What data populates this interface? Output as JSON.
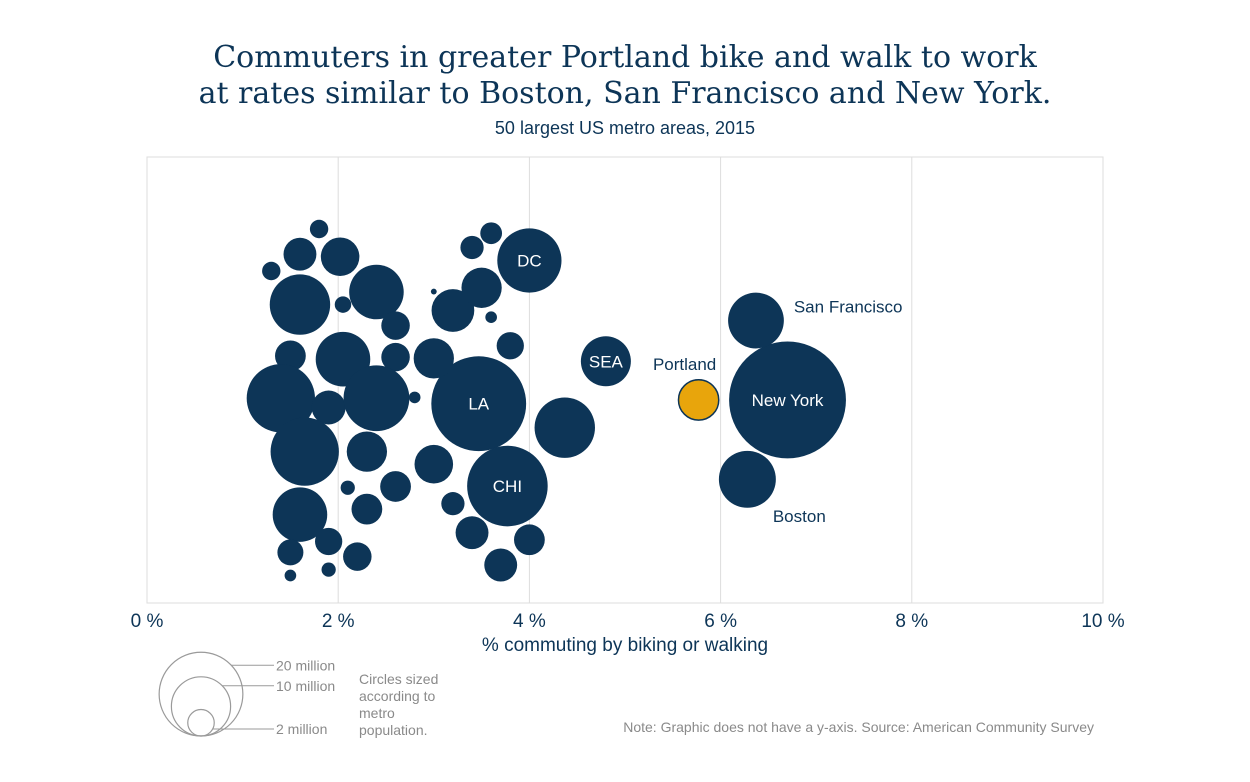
{
  "title_line1": "Commuters in greater Portland bike and walk to work",
  "title_line2": "at rates similar to Boston, San Francisco and New York.",
  "subtitle": "50 largest US metro areas, 2015",
  "xlabel": "% commuting by biking or walking",
  "note": "Note: Graphic does not have a y-axis. Source: American Community Survey",
  "legend": {
    "caption": "Circles sized according to metro population.",
    "items": [
      {
        "label": "20 million",
        "population_millions": 20
      },
      {
        "label": "10 million",
        "population_millions": 10
      },
      {
        "label": "2 million",
        "population_millions": 2
      }
    ]
  },
  "chart_data": {
    "type": "scatter",
    "title": "Commuters in greater Portland bike and walk to work at rates similar to Boston, San Francisco and New York.",
    "subtitle": "50 largest US metro areas, 2015",
    "xlabel": "% commuting by biking or walking",
    "ylabel": "",
    "xlim": [
      0,
      10
    ],
    "x_ticks": [
      {
        "value": 0,
        "label": "0 %"
      },
      {
        "value": 2,
        "label": "2 %"
      },
      {
        "value": 4,
        "label": "4 %"
      },
      {
        "value": 6,
        "label": "6 %"
      },
      {
        "value": 8,
        "label": "8 %"
      },
      {
        "value": 10,
        "label": "10 %"
      }
    ],
    "grid": true,
    "colors": {
      "default": "#0d3557",
      "highlight": "#e8a50c",
      "grid": "#dddddd"
    },
    "points": [
      {
        "label": "DC",
        "label_pos": "inside",
        "x": 4.0,
        "y": 8.25,
        "size": 6.1
      },
      {
        "label": "LA",
        "label_pos": "inside",
        "x": 3.47,
        "y": 4.84,
        "size": 13.3
      },
      {
        "label": "CHI",
        "label_pos": "inside",
        "x": 3.77,
        "y": 2.88,
        "size": 9.6
      },
      {
        "label": "SEA",
        "label_pos": "inside",
        "x": 4.8,
        "y": 5.85,
        "size": 3.7
      },
      {
        "label": "New York",
        "label_pos": "inside",
        "x": 6.7,
        "y": 4.93,
        "size": 20.2
      },
      {
        "label": "San Francisco",
        "label_pos": "right",
        "x": 6.37,
        "y": 6.82,
        "size": 4.6
      },
      {
        "label": "Boston",
        "label_pos": "below-right",
        "x": 6.28,
        "y": 3.04,
        "size": 4.8
      },
      {
        "label": "Portland",
        "label_pos": "above",
        "x": 5.77,
        "y": 4.93,
        "size": 2.4,
        "highlight": true
      },
      {
        "x": 1.8,
        "y": 9.0,
        "size": 0.5
      },
      {
        "x": 1.6,
        "y": 8.4,
        "size": 1.6
      },
      {
        "x": 2.02,
        "y": 8.34,
        "size": 2.2
      },
      {
        "x": 1.3,
        "y": 8.0,
        "size": 0.5
      },
      {
        "x": 1.6,
        "y": 7.2,
        "size": 5.4
      },
      {
        "x": 2.05,
        "y": 7.2,
        "size": 0.4
      },
      {
        "x": 2.4,
        "y": 7.5,
        "size": 4.4
      },
      {
        "x": 2.6,
        "y": 6.7,
        "size": 1.2
      },
      {
        "x": 1.5,
        "y": 5.98,
        "size": 1.4
      },
      {
        "x": 2.05,
        "y": 5.9,
        "size": 4.4
      },
      {
        "x": 2.6,
        "y": 5.95,
        "size": 1.2
      },
      {
        "x": 1.4,
        "y": 4.97,
        "size": 6.9
      },
      {
        "x": 1.9,
        "y": 4.75,
        "size": 1.7
      },
      {
        "x": 2.4,
        "y": 4.97,
        "size": 6.4
      },
      {
        "x": 2.8,
        "y": 4.99,
        "size": 0.2
      },
      {
        "x": 1.65,
        "y": 3.7,
        "size": 6.9
      },
      {
        "x": 2.3,
        "y": 3.7,
        "size": 2.4
      },
      {
        "x": 1.6,
        "y": 2.2,
        "size": 4.4
      },
      {
        "x": 2.1,
        "y": 2.84,
        "size": 0.3
      },
      {
        "x": 2.3,
        "y": 2.33,
        "size": 1.4
      },
      {
        "x": 2.6,
        "y": 2.87,
        "size": 1.4
      },
      {
        "x": 1.5,
        "y": 1.3,
        "size": 1.0
      },
      {
        "x": 1.9,
        "y": 1.56,
        "size": 1.1
      },
      {
        "x": 2.2,
        "y": 1.2,
        "size": 1.2
      },
      {
        "x": 1.5,
        "y": 0.75,
        "size": 0.2
      },
      {
        "x": 1.9,
        "y": 0.89,
        "size": 0.3
      },
      {
        "x": 3.0,
        "y": 3.4,
        "size": 2.2
      },
      {
        "x": 3.2,
        "y": 2.46,
        "size": 0.8
      },
      {
        "x": 3.4,
        "y": 1.77,
        "size": 1.6
      },
      {
        "x": 3.7,
        "y": 1.0,
        "size": 1.6
      },
      {
        "x": 4.0,
        "y": 1.6,
        "size": 1.4
      },
      {
        "x": 4.37,
        "y": 4.27,
        "size": 5.4
      },
      {
        "x": 3.0,
        "y": 5.92,
        "size": 2.4
      },
      {
        "x": 3.2,
        "y": 7.06,
        "size": 2.7
      },
      {
        "x": 3.5,
        "y": 7.6,
        "size": 2.4
      },
      {
        "x": 3.8,
        "y": 6.22,
        "size": 1.1
      },
      {
        "x": 3.4,
        "y": 8.56,
        "size": 0.8
      },
      {
        "x": 3.6,
        "y": 8.9,
        "size": 0.7
      },
      {
        "x": 3.0,
        "y": 7.51,
        "size": 0.05
      },
      {
        "x": 3.6,
        "y": 6.9,
        "size": 0.2
      }
    ]
  }
}
